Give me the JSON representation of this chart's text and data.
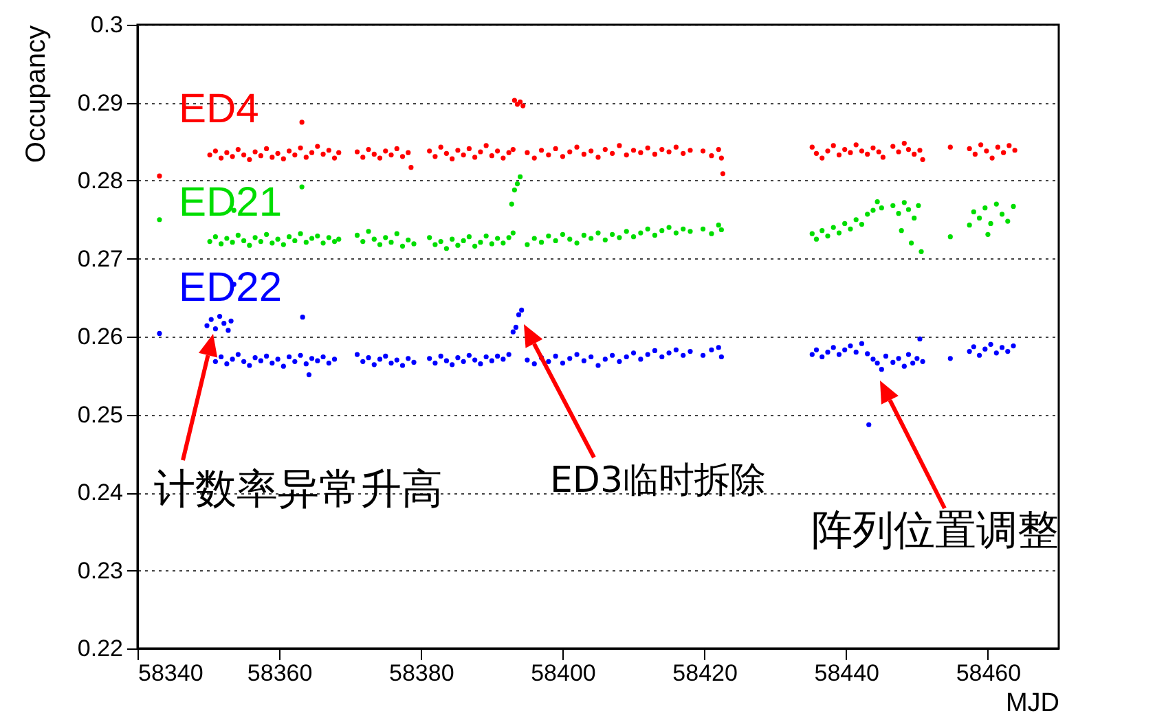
{
  "chart_data": {
    "type": "scatter",
    "xlabel": "MJD",
    "ylabel": "Occupancy",
    "xlim": [
      58340,
      58470
    ],
    "xticks": [
      58340,
      58360,
      58380,
      58400,
      58420,
      58440,
      58460
    ],
    "ylim": [
      0.22,
      0.3
    ],
    "yticks": [
      0.22,
      0.23,
      0.24,
      0.25,
      0.26,
      0.27,
      0.28,
      0.29,
      0.3
    ],
    "grid": "y",
    "annotations": [
      "计数率异常升高",
      "ED3临时拆除",
      "阵列位置调整"
    ],
    "series": [
      {
        "name": "ED4",
        "color": "#ff0000",
        "x": [
          58343.1,
          58363.2,
          58350.2,
          58351.0,
          58351.8,
          58352.6,
          58353.4,
          58354.2,
          58355.0,
          58355.8,
          58356.6,
          58357.4,
          58358.2,
          58359.0,
          58359.8,
          58360.6,
          58361.4,
          58362.2,
          58363.0,
          58363.8,
          58364.6,
          58365.4,
          58366.2,
          58367.0,
          58367.8,
          58368.4,
          58371.0,
          58371.8,
          58372.6,
          58373.4,
          58374.2,
          58375.0,
          58375.8,
          58376.6,
          58377.4,
          58378.2,
          58378.6,
          58381.2,
          58382.0,
          58382.8,
          58383.6,
          58384.4,
          58385.2,
          58386.0,
          58386.8,
          58387.6,
          58388.4,
          58389.2,
          58390.0,
          58390.8,
          58391.6,
          58392.4,
          58393.0,
          58393.2,
          58393.6,
          58394.0,
          58394.4,
          58395,
          58396,
          58397,
          58398,
          58399,
          58400,
          58401,
          58402,
          58403,
          58404,
          58405,
          58406,
          58407,
          58408,
          58409,
          58410,
          58411,
          58412,
          58413,
          58414,
          58415,
          58416,
          58417,
          58418,
          58419.8,
          58421.0,
          58422.0,
          58422.4,
          58422.6,
          58435.2,
          58435.8,
          58436.6,
          58437.4,
          58438.2,
          58439.0,
          58439.8,
          58440.6,
          58441.4,
          58442.2,
          58443.0,
          58443.8,
          58444.6,
          58445.2,
          58446.6,
          58447.4,
          58448.2,
          58448.8,
          58449.6,
          58450.4,
          58450.8,
          58454.7,
          58457.4,
          58458.2,
          58459.0,
          58459.8,
          58460.6,
          58461.4,
          58462.2,
          58463.0,
          58463.8
        ],
        "values": [
          0.2806,
          0.2875,
          0.2833,
          0.2838,
          0.2829,
          0.2836,
          0.2831,
          0.284,
          0.2833,
          0.2827,
          0.2837,
          0.2832,
          0.2841,
          0.283,
          0.2835,
          0.2828,
          0.2838,
          0.2833,
          0.2842,
          0.283,
          0.2836,
          0.2844,
          0.2834,
          0.2839,
          0.2829,
          0.2836,
          0.2837,
          0.283,
          0.284,
          0.2834,
          0.2829,
          0.2838,
          0.2833,
          0.2841,
          0.2831,
          0.2836,
          0.2817,
          0.2838,
          0.2831,
          0.2843,
          0.2835,
          0.2828,
          0.2839,
          0.2833,
          0.2841,
          0.283,
          0.2837,
          0.2845,
          0.2832,
          0.2838,
          0.2829,
          0.2836,
          0.284,
          0.2903,
          0.2898,
          0.2901,
          0.2896,
          0.2836,
          0.2829,
          0.2839,
          0.2833,
          0.2841,
          0.2831,
          0.2837,
          0.2843,
          0.2834,
          0.2838,
          0.283,
          0.284,
          0.2835,
          0.2845,
          0.2833,
          0.2839,
          0.2836,
          0.2842,
          0.2834,
          0.284,
          0.2837,
          0.2843,
          0.2835,
          0.2839,
          0.2838,
          0.2832,
          0.284,
          0.2829,
          0.2809,
          0.2843,
          0.2835,
          0.2829,
          0.2838,
          0.2845,
          0.2833,
          0.284,
          0.2836,
          0.2846,
          0.2838,
          0.2834,
          0.2842,
          0.2837,
          0.283,
          0.2844,
          0.2837,
          0.2848,
          0.284,
          0.2834,
          0.2839,
          0.2827,
          0.2843,
          0.2841,
          0.2834,
          0.2846,
          0.2838,
          0.2829,
          0.2843,
          0.2836,
          0.2845,
          0.2839
        ]
      },
      {
        "name": "ED21",
        "color": "#00dd00",
        "x": [
          58343.1,
          58363.2,
          58353.6,
          58350.2,
          58351.0,
          58351.8,
          58352.6,
          58353.4,
          58354.2,
          58355.0,
          58355.8,
          58356.6,
          58357.4,
          58358.2,
          58359.0,
          58359.8,
          58360.6,
          58361.4,
          58362.2,
          58363.0,
          58363.8,
          58364.6,
          58365.4,
          58366.2,
          58367.0,
          58367.8,
          58368.4,
          58371.0,
          58371.8,
          58372.6,
          58373.4,
          58374.2,
          58375.0,
          58375.8,
          58376.6,
          58377.4,
          58378.2,
          58379.0,
          58381.2,
          58382.0,
          58382.8,
          58383.6,
          58384.4,
          58385.2,
          58386.0,
          58386.8,
          58387.6,
          58388.4,
          58389.2,
          58390.0,
          58390.8,
          58391.6,
          58392.4,
          58393.0,
          58392.8,
          58393.2,
          58393.6,
          58394.0,
          58395,
          58396,
          58397,
          58398,
          58399,
          58400,
          58401,
          58402,
          58403,
          58404,
          58405,
          58406,
          58407,
          58408,
          58409,
          58410,
          58411,
          58412,
          58413,
          58414,
          58415,
          58416,
          58417,
          58418,
          58419.8,
          58421.0,
          58422.0,
          58422.4,
          58435.2,
          58435.8,
          58436.6,
          58437.4,
          58438.2,
          58439.0,
          58439.8,
          58440.6,
          58441.4,
          58442.2,
          58443.0,
          58443.8,
          58444.4,
          58445.0,
          58446.6,
          58447.4,
          58448.2,
          58448.8,
          58449.2,
          58449.6,
          58450.2,
          58450.6,
          58447.8,
          58454.7,
          58457.4,
          58458.0,
          58458.8,
          58459.6,
          58460.4,
          58461.2,
          58462.0,
          58462.8,
          58463.6,
          58460.0
        ],
        "values": [
          0.275,
          0.2792,
          0.2762,
          0.2722,
          0.2728,
          0.2719,
          0.2726,
          0.2721,
          0.273,
          0.2723,
          0.2717,
          0.2727,
          0.2722,
          0.2731,
          0.272,
          0.2725,
          0.2718,
          0.2728,
          0.2723,
          0.2732,
          0.2721,
          0.2726,
          0.2729,
          0.272,
          0.2727,
          0.2722,
          0.2725,
          0.273,
          0.2722,
          0.2735,
          0.2725,
          0.2718,
          0.2727,
          0.2721,
          0.2732,
          0.2716,
          0.2724,
          0.2719,
          0.2727,
          0.2718,
          0.2722,
          0.2713,
          0.2725,
          0.2717,
          0.2723,
          0.2728,
          0.2716,
          0.2721,
          0.2729,
          0.2719,
          0.2726,
          0.272,
          0.2727,
          0.2733,
          0.277,
          0.2788,
          0.2796,
          0.2805,
          0.2718,
          0.2726,
          0.2721,
          0.2729,
          0.2723,
          0.2731,
          0.2725,
          0.272,
          0.273,
          0.2726,
          0.2733,
          0.2724,
          0.2731,
          0.2727,
          0.2735,
          0.2728,
          0.2733,
          0.2738,
          0.273,
          0.2736,
          0.274,
          0.2733,
          0.2738,
          0.2735,
          0.2738,
          0.2732,
          0.2743,
          0.2737,
          0.2732,
          0.2725,
          0.2736,
          0.2729,
          0.274,
          0.2733,
          0.2745,
          0.2738,
          0.275,
          0.2744,
          0.2757,
          0.2762,
          0.2773,
          0.2765,
          0.2768,
          0.2758,
          0.2772,
          0.2763,
          0.272,
          0.2752,
          0.2768,
          0.2709,
          0.2736,
          0.2728,
          0.2743,
          0.276,
          0.2752,
          0.2765,
          0.2745,
          0.277,
          0.2757,
          0.2748,
          0.2767,
          0.2731
        ]
      },
      {
        "name": "ED22",
        "color": "#0000ff",
        "x": [
          58343.1,
          58353.6,
          58363.3,
          58364.2,
          58349.8,
          58350.4,
          58351.0,
          58351.6,
          58352.2,
          58352.8,
          58353.2,
          58351.0,
          58351.8,
          58352.6,
          58353.4,
          58354.2,
          58355.0,
          58355.8,
          58356.6,
          58357.4,
          58358.2,
          58359.0,
          58359.8,
          58360.6,
          58361.4,
          58362.2,
          58363.0,
          58363.8,
          58364.6,
          58365.4,
          58366.2,
          58367.0,
          58367.8,
          58371.0,
          58371.8,
          58372.6,
          58373.4,
          58374.2,
          58375.0,
          58375.8,
          58376.6,
          58377.4,
          58378.2,
          58379.0,
          58381.2,
          58382.0,
          58382.8,
          58383.6,
          58384.4,
          58385.2,
          58386.0,
          58386.8,
          58387.6,
          58388.4,
          58389.2,
          58390.0,
          58390.8,
          58391.6,
          58392.4,
          58393.0,
          58393.4,
          58393.8,
          58394.2,
          58395,
          58396,
          58397,
          58398,
          58399,
          58400,
          58401,
          58402,
          58403,
          58404,
          58405,
          58406,
          58407,
          58408,
          58409,
          58410,
          58411,
          58412,
          58413,
          58414,
          58415,
          58416,
          58417,
          58418,
          58419.8,
          58421.0,
          58422.0,
          58422.4,
          58435.2,
          58435.8,
          58436.6,
          58437.4,
          58438.2,
          58439.0,
          58439.8,
          58440.6,
          58441.4,
          58442.2,
          58443.0,
          58443.2,
          58443.8,
          58444.4,
          58445.0,
          58445.6,
          58446.6,
          58447.4,
          58448.2,
          58448.8,
          58449.4,
          58450.0,
          58450.4,
          58450.8,
          58454.7,
          58457.4,
          58458.0,
          58458.8,
          58459.6,
          58460.4,
          58461.2,
          58462.0,
          58462.8,
          58463.6
        ],
        "values": [
          0.2604,
          0.2667,
          0.2625,
          0.2551,
          0.2614,
          0.2622,
          0.261,
          0.2626,
          0.2617,
          0.2608,
          0.262,
          0.2568,
          0.2574,
          0.2565,
          0.2571,
          0.2577,
          0.2568,
          0.2563,
          0.2573,
          0.2569,
          0.2575,
          0.2566,
          0.2571,
          0.2562,
          0.2574,
          0.2568,
          0.2576,
          0.2565,
          0.2572,
          0.2569,
          0.2574,
          0.2566,
          0.2571,
          0.2577,
          0.2568,
          0.2573,
          0.2564,
          0.2571,
          0.2575,
          0.2566,
          0.257,
          0.2563,
          0.2572,
          0.2567,
          0.2572,
          0.2566,
          0.2575,
          0.2569,
          0.2564,
          0.2573,
          0.2568,
          0.2576,
          0.257,
          0.2565,
          0.2574,
          0.2569,
          0.2575,
          0.2571,
          0.2577,
          0.2606,
          0.2612,
          0.2628,
          0.2634,
          0.257,
          0.2565,
          0.2573,
          0.2568,
          0.2575,
          0.2566,
          0.2572,
          0.2577,
          0.2569,
          0.2574,
          0.2563,
          0.2571,
          0.2576,
          0.2568,
          0.2574,
          0.2579,
          0.2571,
          0.2577,
          0.2582,
          0.2574,
          0.2579,
          0.2583,
          0.2576,
          0.2581,
          0.2576,
          0.2583,
          0.2586,
          0.2574,
          0.2577,
          0.2583,
          0.2574,
          0.258,
          0.2586,
          0.2577,
          0.2583,
          0.2588,
          0.258,
          0.2591,
          0.2578,
          0.2487,
          0.2571,
          0.2566,
          0.2558,
          0.2575,
          0.2567,
          0.2572,
          0.2562,
          0.2577,
          0.2566,
          0.2572,
          0.2597,
          0.2568,
          0.2572,
          0.2581,
          0.2587,
          0.2576,
          0.2584,
          0.259,
          0.2579,
          0.2586,
          0.2581,
          0.2588
        ]
      }
    ]
  }
}
